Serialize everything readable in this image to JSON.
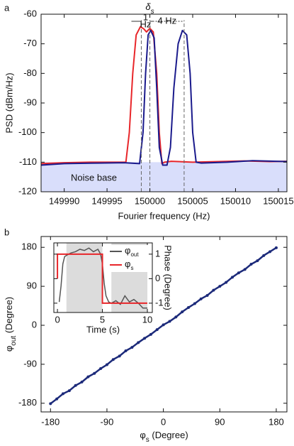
{
  "chart_data": [
    {
      "type": "line",
      "panel_label": "a",
      "xlabel": "Fourier frequency (Hz)",
      "ylabel": "PSD (dBm/Hz)",
      "xlim": [
        149987.3,
        150016
      ],
      "ylim": [
        -120,
        -60
      ],
      "xticks": [
        149990,
        149995,
        150000,
        150005,
        150010,
        150015
      ],
      "yticks": [
        -120,
        -110,
        -100,
        -90,
        -80,
        -70,
        -60
      ],
      "noise_base": {
        "label": "Noise base",
        "range": [
          -120,
          -110
        ],
        "color": "#d9defb"
      },
      "markers": [
        149999,
        150000,
        150004
      ],
      "annotations": {
        "delta": {
          "text": "δ",
          "sub": "s"
        },
        "gap1": [
          "1",
          "Hz"
        ],
        "gap2": "4 Hz"
      },
      "series": [
        {
          "color": "#e8262a",
          "x": [
            149987.3,
            149990,
            149993,
            149996,
            149997.2,
            149997.6,
            149998,
            149998.4,
            149998.9,
            149999.3,
            149999.6,
            150000,
            150000.4,
            150000.8,
            150001.1,
            150001.4,
            150001.7,
            150002.5,
            150005,
            150008,
            150011,
            150014,
            150016
          ],
          "values": [
            -110.5,
            -110.2,
            -110,
            -110,
            -110,
            -100,
            -80,
            -67,
            -64.2,
            -65,
            -66,
            -64.8,
            -66,
            -80,
            -100,
            -110.5,
            -110,
            -109.7,
            -110,
            -109.8,
            -109.6,
            -109.8,
            -109.7
          ]
        },
        {
          "color": "#1a1a8c",
          "x": [
            149987.3,
            149990,
            149994,
            149997,
            149998.8,
            149999.2,
            149999.5,
            149999.8,
            150000.1,
            150000.5,
            150000.8,
            150001.1,
            150001.5,
            150002,
            150002.4,
            150002.8,
            150003.3,
            150003.8,
            150004.3,
            150004.7,
            150005,
            150005.4,
            150006,
            150009,
            150012,
            150016
          ],
          "values": [
            -111,
            -110.5,
            -110.3,
            -110.2,
            -110.5,
            -100,
            -80,
            -67,
            -65.5,
            -68,
            -85,
            -105,
            -111,
            -111,
            -105,
            -85,
            -70,
            -65.5,
            -67,
            -80,
            -100,
            -110,
            -110.3,
            -110,
            -109.5,
            -109.8
          ]
        }
      ]
    },
    {
      "type": "scatter",
      "panel_label": "b",
      "xlabel": {
        "text": "φ",
        "sub": "s",
        "rest": " (Degree)"
      },
      "ylabel": {
        "text": "φ",
        "sub": "out",
        "rest": " (Degree)"
      },
      "xlim": [
        -195,
        197
      ],
      "ylim": [
        -200,
        205
      ],
      "xticks": [
        -180,
        -90,
        0,
        90,
        180
      ],
      "yticks": [
        -180,
        -90,
        0,
        90,
        180
      ],
      "color": "#1c2a7a",
      "x": [
        -180,
        -170,
        -160,
        -150,
        -140,
        -130,
        -120,
        -110,
        -100,
        -90,
        -80,
        -70,
        -60,
        -50,
        -40,
        -30,
        -20,
        -10,
        0,
        10,
        20,
        30,
        40,
        50,
        60,
        70,
        80,
        90,
        100,
        110,
        120,
        130,
        140,
        150,
        160,
        170,
        180
      ],
      "values": [
        -181,
        -170,
        -158,
        -151,
        -139,
        -131,
        -119,
        -111,
        -100,
        -91,
        -79,
        -71,
        -59,
        -51,
        -40,
        -30,
        -21,
        -10,
        1,
        9,
        19,
        31,
        41,
        50,
        61,
        69,
        81,
        90,
        99,
        111,
        121,
        129,
        141,
        149,
        161,
        170,
        179
      ]
    },
    {
      "type": "line",
      "xlabel": "Time (s)",
      "ylabel": "Phase (Degree)",
      "xlim": [
        -0.4,
        10.55
      ],
      "ylim": [
        -1.38,
        1.46
      ],
      "xticks": [
        0,
        5,
        10
      ],
      "yticks": [
        -1,
        0,
        1
      ],
      "shaded_regions": [
        [
          1,
          5
        ],
        [
          6,
          10
        ]
      ],
      "shade_color": "#dcdcdc",
      "series": [
        {
          "name": "φ",
          "name_sub": "out",
          "color": "#555555",
          "x": [
            0.2,
            0.4,
            0.6,
            0.8,
            1.0,
            1.5,
            2.0,
            2.5,
            3.0,
            3.5,
            4.0,
            4.5,
            4.8,
            5.0,
            5.2,
            5.4,
            5.7,
            6.0,
            6.5,
            7.0,
            7.5,
            8.0,
            8.5,
            9.0,
            9.5,
            10.0
          ],
          "values": [
            -0.95,
            -0.3,
            0.6,
            0.9,
            0.95,
            1.05,
            1.1,
            1.2,
            1.15,
            1.25,
            1.1,
            1.2,
            1.0,
            0.6,
            -0.2,
            -0.7,
            -0.95,
            -1.0,
            -0.9,
            -1.05,
            -0.7,
            -0.95,
            -0.85,
            -1.0,
            -1.2,
            -1.2
          ]
        },
        {
          "name": "φ",
          "name_sub": "s",
          "color": "#e8262a",
          "x": [
            0,
            0,
            5,
            5,
            10
          ],
          "values": [
            0,
            1,
            1,
            -1,
            -1
          ]
        }
      ]
    }
  ]
}
